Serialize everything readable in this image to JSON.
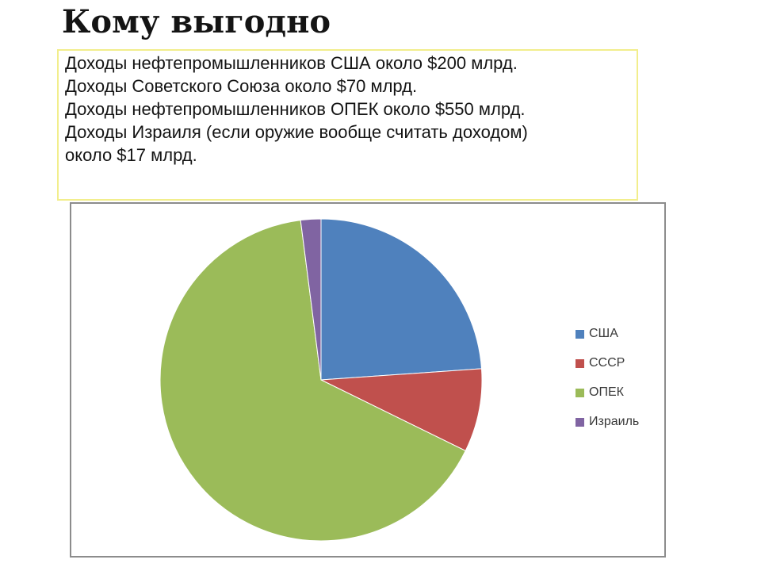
{
  "slide": {
    "title": "Кому выгодно",
    "note_lines": [
      "Доходы нефтепромышленников США около $200 млрд.",
      "Доходы Советского Союза около $70 млрд.",
      "Доходы нефтепромышленников ОПЕК около $550 млрд.",
      "Доходы Израиля (если оружие вообще считать доходом)",
      "около $17 млрд."
    ],
    "note_border_color": "#f2ee8c",
    "chart_frame_border_color": "#8c8c8c"
  },
  "chart_data": {
    "type": "pie",
    "title": "",
    "legend_position": "right",
    "start_angle_deg": 0,
    "direction": "clockwise",
    "slices": [
      {
        "label": "США",
        "value": 200,
        "color": "#4F81BD"
      },
      {
        "label": "СССР",
        "value": 70,
        "color": "#C0504D"
      },
      {
        "label": "ОПЕК",
        "value": 550,
        "color": "#9BBB59"
      },
      {
        "label": "Израиль",
        "value": 17,
        "color": "#8064A2"
      }
    ]
  }
}
